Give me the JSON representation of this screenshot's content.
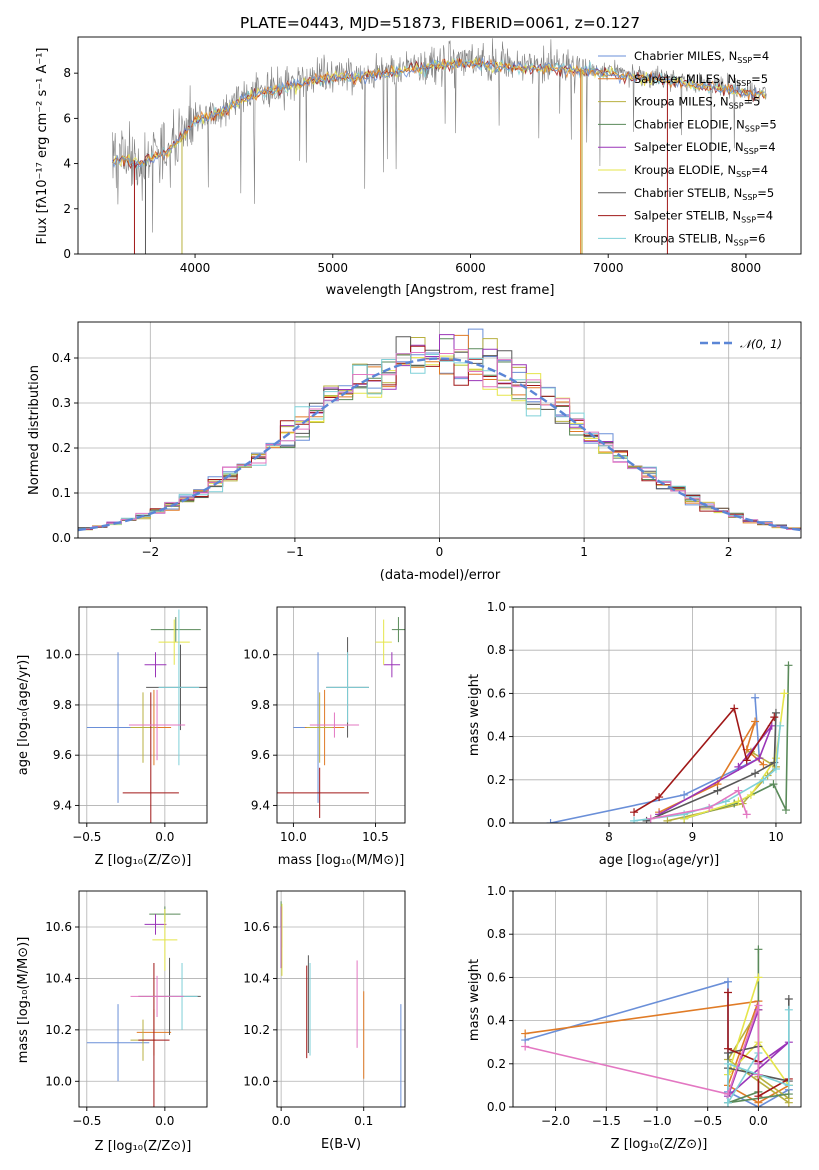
{
  "figure_title": "PLATE=0443, MJD=51873, FIBERID=0061, z=0.127",
  "labels": {
    "spec_x": "wavelength [Angstrom, rest frame]",
    "spec_y": "Flux [fλ10⁻¹⁷ erg cm⁻² s⁻¹ A⁻¹]",
    "resid_x": "(data-model)/error",
    "resid_y": "Normed distribution",
    "age_y": "age  [log₁₀(age/yr)]",
    "z_x": "Z [log₁₀(Z/Z⊙)]",
    "mass_x": "mass [log₁₀(M/M⊙)]",
    "mass_y": "mass [log₁₀(M/M⊙)]",
    "ebv_x": "E(B-V)",
    "mw_y": "mass weight",
    "mwage_x": "age  [log₁₀(age/yr)]",
    "mwz_x": "Z [log₁₀(Z/Z⊙)]"
  },
  "legend_normal": "𝒩(0, 1)",
  "colors": {
    "Chabrier MILES": "#6a8fd8",
    "Salpeter MILES": "#e07b26",
    "Kroupa MILES": "#b8b040",
    "Chabrier ELODIE": "#5a8a5a",
    "Salpeter ELODIE": "#9a35b8",
    "Kroupa ELODIE": "#e5e54a",
    "Chabrier STELIB": "#585858",
    "Salpeter STELIB": "#a01818",
    "Kroupa STELIB": "#7fd0d8",
    "pink": "#e377c2"
  },
  "chart_data": [
    {
      "id": "spectrum",
      "type": "line",
      "title": "PLATE=0443, MJD=51873, FIBERID=0061, z=0.127",
      "xlabel": "wavelength [Angstrom, rest frame]",
      "ylabel": "Flux [fλ10⁻¹⁷ erg cm⁻² s⁻¹ A⁻¹]",
      "xlim": [
        3150,
        8400
      ],
      "ylim": [
        0,
        9.6
      ],
      "xticks": [
        4000,
        5000,
        6000,
        7000,
        8000
      ],
      "yticks": [
        0,
        2,
        4,
        6,
        8
      ],
      "legend": [
        {
          "name": "Chabrier MILES",
          "nssp": "4"
        },
        {
          "name": "Salpeter MILES",
          "nssp": "5"
        },
        {
          "name": "Kroupa MILES",
          "nssp": "5"
        },
        {
          "name": "Chabrier ELODIE",
          "nssp": "5"
        },
        {
          "name": "Salpeter ELODIE",
          "nssp": "4"
        },
        {
          "name": "Kroupa ELODIE",
          "nssp": "4"
        },
        {
          "name": "Chabrier STELIB",
          "nssp": "5"
        },
        {
          "name": "Salpeter STELIB",
          "nssp": "4"
        },
        {
          "name": "Kroupa STELIB",
          "nssp": "6"
        }
      ],
      "data_envelope": {
        "x": [
          3400,
          3600,
          3800,
          4000,
          4200,
          4400,
          4600,
          4800,
          5000,
          5200,
          5400,
          5600,
          5800,
          6000,
          6200,
          6400,
          6600,
          6800,
          7000,
          7200,
          7400,
          7600,
          7800,
          8000,
          8150
        ],
        "y": [
          4.3,
          4.1,
          4.6,
          6.0,
          6.4,
          7.1,
          7.4,
          7.7,
          7.9,
          7.9,
          8.1,
          8.3,
          8.5,
          8.5,
          8.4,
          8.3,
          8.3,
          8.2,
          8.1,
          7.9,
          7.8,
          7.6,
          7.4,
          7.2,
          7.1
        ]
      }
    },
    {
      "id": "residuals",
      "type": "line",
      "xlabel": "(data-model)/error",
      "ylabel": "Normed distribution",
      "xlim": [
        -2.5,
        2.5
      ],
      "ylim": [
        0,
        0.48
      ],
      "xticks": [
        -2,
        -1,
        0,
        1,
        2
      ],
      "yticks": [
        0.0,
        0.1,
        0.2,
        0.3,
        0.4
      ],
      "series": [
        {
          "name": "𝒩(0, 1)",
          "mu": 0,
          "sigma": 1
        }
      ]
    },
    {
      "id": "age_vs_Z",
      "type": "scatter",
      "xlim": [
        -0.55,
        0.27
      ],
      "ylim": [
        9.33,
        10.19
      ],
      "xticks": [
        -0.5,
        0.0,
        0.5
      ],
      "yticks": [
        9.4,
        9.6,
        9.8,
        10.0
      ],
      "points": [
        {
          "c": "Chabrier MILES",
          "x": -0.3,
          "xe": 0.2,
          "y": 9.71,
          "ye": 0.3
        },
        {
          "c": "Salpeter MILES",
          "x": -0.07,
          "xe": 0.11,
          "y": 9.71,
          "ye": 0.15
        },
        {
          "c": "Kroupa MILES",
          "x": -0.14,
          "xe": 0.08,
          "y": 9.71,
          "ye": 0.14
        },
        {
          "c": "Chabrier ELODIE",
          "x": 0.07,
          "xe": 0.16,
          "y": 10.1,
          "ye": 0.05
        },
        {
          "c": "Salpeter ELODIE",
          "x": -0.06,
          "xe": 0.07,
          "y": 9.96,
          "ye": 0.05
        },
        {
          "c": "Kroupa ELODIE",
          "x": 0.06,
          "xe": 0.1,
          "y": 10.05,
          "ye": 0.09
        },
        {
          "c": "Chabrier STELIB",
          "x": 0.1,
          "xe": 0.22,
          "y": 9.87,
          "ye": 0.17
        },
        {
          "c": "Salpeter STELIB",
          "x": -0.09,
          "xe": 0.18,
          "y": 9.45,
          "ye": 0.4
        },
        {
          "c": "Kroupa STELIB",
          "x": 0.09,
          "xe": 0.13,
          "y": 9.87,
          "ye": 0.31
        },
        {
          "c": "pink",
          "x": -0.05,
          "xe": 0.18,
          "y": 9.72,
          "ye": 0.14
        }
      ]
    },
    {
      "id": "age_vs_mass",
      "type": "scatter",
      "xlim": [
        9.9,
        10.68
      ],
      "ylim": [
        9.33,
        10.19
      ],
      "xticks": [
        10.0,
        10.5
      ],
      "yticks": [
        9.4,
        9.6,
        9.8,
        10.0
      ],
      "points": [
        {
          "c": "Chabrier MILES",
          "x": 10.15,
          "xe": 0.15,
          "y": 9.71,
          "ye": 0.3
        },
        {
          "c": "Salpeter MILES",
          "x": 10.19,
          "xe": 0.12,
          "y": 9.71,
          "ye": 0.15
        },
        {
          "c": "Kroupa MILES",
          "x": 10.16,
          "xe": 0.08,
          "y": 9.71,
          "ye": 0.14
        },
        {
          "c": "Chabrier ELODIE",
          "x": 10.64,
          "xe": 0.04,
          "y": 10.1,
          "ye": 0.05
        },
        {
          "c": "Salpeter ELODIE",
          "x": 10.6,
          "xe": 0.05,
          "y": 9.96,
          "ye": 0.05
        },
        {
          "c": "Kroupa ELODIE",
          "x": 10.55,
          "xe": 0.05,
          "y": 10.05,
          "ye": 0.09
        },
        {
          "c": "Chabrier STELIB",
          "x": 10.33,
          "xe": 0.13,
          "y": 9.87,
          "ye": 0.2
        },
        {
          "c": "Salpeter STELIB",
          "x": 10.16,
          "xe": 0.3,
          "y": 9.45,
          "ye": 0.1
        },
        {
          "c": "Kroupa STELIB",
          "x": 10.33,
          "xe": 0.13,
          "y": 9.87,
          "ye": 0.14
        },
        {
          "c": "pink",
          "x": 10.25,
          "xe": 0.15,
          "y": 9.72,
          "ye": 0.05
        }
      ]
    },
    {
      "id": "mass_vs_Z",
      "type": "scatter",
      "xlim": [
        -0.55,
        0.27
      ],
      "ylim": [
        9.9,
        10.74
      ],
      "xticks": [
        -0.5,
        0.0,
        0.5
      ],
      "yticks": [
        10.0,
        10.2,
        10.4,
        10.6
      ],
      "points": [
        {
          "c": "Chabrier MILES",
          "x": -0.3,
          "xe": 0.2,
          "y": 10.15,
          "ye": 0.15
        },
        {
          "c": "Salpeter MILES",
          "x": -0.07,
          "xe": 0.11,
          "y": 10.19,
          "ye": 0.09
        },
        {
          "c": "Kroupa MILES",
          "x": -0.14,
          "xe": 0.08,
          "y": 10.16,
          "ye": 0.08
        },
        {
          "c": "Chabrier ELODIE",
          "x": 0.0,
          "xe": 0.1,
          "y": 10.65,
          "ye": 0.03
        },
        {
          "c": "Salpeter ELODIE",
          "x": -0.06,
          "xe": 0.07,
          "y": 10.61,
          "ye": 0.04
        },
        {
          "c": "Kroupa ELODIE",
          "x": 0.0,
          "xe": 0.08,
          "y": 10.55,
          "ye": 0.12
        },
        {
          "c": "Chabrier STELIB",
          "x": 0.03,
          "xe": 0.2,
          "y": 10.33,
          "ye": 0.15
        },
        {
          "c": "Salpeter STELIB",
          "x": -0.07,
          "xe": 0.1,
          "y": 10.16,
          "ye": 0.3
        },
        {
          "c": "Kroupa STELIB",
          "x": 0.11,
          "xe": 0.1,
          "y": 10.33,
          "ye": 0.13
        },
        {
          "c": "pink",
          "x": -0.05,
          "xe": 0.17,
          "y": 10.33,
          "ye": 0.08
        }
      ]
    },
    {
      "id": "mass_vs_ebv",
      "type": "scatter",
      "xlim": [
        -0.005,
        0.15
      ],
      "ylim": [
        9.9,
        10.74
      ],
      "xticks": [
        0.0,
        0.1
      ],
      "yticks": [
        10.0,
        10.2,
        10.4,
        10.6
      ],
      "points": [
        {
          "c": "Chabrier MILES",
          "x": 0.145,
          "y": 10.1,
          "ye": 0.2
        },
        {
          "c": "Salpeter MILES",
          "x": 0.1,
          "y": 10.18,
          "ye": 0.17
        },
        {
          "c": "Kroupa MILES",
          "x": 0.001,
          "y": 10.6,
          "ye": 0.08
        },
        {
          "c": "Chabrier ELODIE",
          "x": 0.0,
          "y": 10.65,
          "ye": 0.05
        },
        {
          "c": "Salpeter ELODIE",
          "x": 0.0,
          "y": 10.56,
          "ye": 0.12
        },
        {
          "c": "Kroupa ELODIE",
          "x": 0.001,
          "y": 10.55,
          "ye": 0.14
        },
        {
          "c": "Chabrier STELIB",
          "x": 0.033,
          "y": 10.3,
          "ye": 0.19
        },
        {
          "c": "Salpeter STELIB",
          "x": 0.031,
          "y": 10.27,
          "ye": 0.18
        },
        {
          "c": "Kroupa STELIB",
          "x": 0.035,
          "y": 10.28,
          "ye": 0.18
        },
        {
          "c": "pink",
          "x": 0.092,
          "y": 10.3,
          "ye": 0.17
        }
      ]
    },
    {
      "id": "massweight_vs_age",
      "type": "line",
      "xlim": [
        6.85,
        10.3
      ],
      "ylim": [
        0,
        1.0
      ],
      "xticks": [
        8,
        9,
        10
      ],
      "yticks": [
        0.0,
        0.2,
        0.4,
        0.6,
        0.8,
        1.0
      ],
      "series": [
        {
          "c": "Chabrier MILES",
          "x": [
            7.3,
            8.9,
            9.8,
            9.75
          ],
          "y": [
            0.0,
            0.13,
            0.3,
            0.58
          ]
        },
        {
          "c": "Salpeter MILES",
          "x": [
            8.6,
            9.3,
            9.75,
            9.65,
            9.85
          ],
          "y": [
            0.05,
            0.18,
            0.47,
            0.34,
            0.27
          ]
        },
        {
          "c": "Kroupa MILES",
          "x": [
            8.7,
            9.6,
            9.9,
            10.0,
            9.7
          ],
          "y": [
            0.01,
            0.09,
            0.22,
            0.26,
            0.33
          ]
        },
        {
          "c": "Chabrier ELODIE",
          "x": [
            8.9,
            9.5,
            9.97,
            10.12,
            10.15
          ],
          "y": [
            0.02,
            0.09,
            0.18,
            0.06,
            0.73
          ]
        },
        {
          "c": "Salpeter ELODIE",
          "x": [
            8.6,
            9.8,
            9.95,
            9.55
          ],
          "y": [
            0.04,
            0.3,
            0.45,
            0.26
          ]
        },
        {
          "c": "Kroupa ELODIE",
          "x": [
            8.9,
            9.55,
            9.7,
            10.0,
            10.1
          ],
          "y": [
            0.02,
            0.1,
            0.13,
            0.3,
            0.6
          ]
        },
        {
          "c": "Chabrier STELIB",
          "x": [
            8.45,
            9.3,
            9.75,
            9.98,
            10.0
          ],
          "y": [
            0.01,
            0.15,
            0.23,
            0.28,
            0.51
          ]
        },
        {
          "c": "Salpeter STELIB",
          "x": [
            8.3,
            8.6,
            9.5,
            9.65,
            9.98
          ],
          "y": [
            0.05,
            0.12,
            0.53,
            0.29,
            0.49
          ]
        },
        {
          "c": "Kroupa STELIB",
          "x": [
            8.3,
            8.9,
            9.4,
            9.85,
            10.0,
            10.05
          ],
          "y": [
            0.01,
            0.04,
            0.1,
            0.2,
            0.25,
            0.45
          ]
        },
        {
          "c": "pink",
          "x": [
            8.5,
            9.2,
            9.55,
            9.65
          ],
          "y": [
            0.02,
            0.07,
            0.15,
            0.04
          ]
        }
      ]
    },
    {
      "id": "massweight_vs_Z",
      "type": "line",
      "xlim": [
        -2.42,
        0.42
      ],
      "ylim": [
        0,
        1.0
      ],
      "xticks": [
        -2.0,
        -1.5,
        -1.0,
        -0.5,
        0.0
      ],
      "yticks": [
        0.0,
        0.2,
        0.4,
        0.6,
        0.8,
        1.0
      ],
      "series": [
        {
          "c": "Chabrier MILES",
          "x": [
            -2.3,
            -0.3,
            -0.3,
            0.0,
            0.3
          ],
          "y": [
            0.31,
            0.58,
            0.07,
            0.0,
            0.08
          ]
        },
        {
          "c": "Salpeter MILES",
          "x": [
            -2.3,
            0.0,
            -0.3,
            0.0,
            0.3
          ],
          "y": [
            0.34,
            0.49,
            0.1,
            0.02,
            0.1
          ]
        },
        {
          "c": "Kroupa MILES",
          "x": [
            0.3,
            -0.3,
            0.0,
            0.0,
            0.3
          ],
          "y": [
            0.02,
            0.22,
            0.45,
            0.14,
            0.04
          ]
        },
        {
          "c": "Chabrier ELODIE",
          "x": [
            0.0,
            0.0,
            -0.3,
            0.3
          ],
          "y": [
            0.73,
            0.07,
            0.02,
            0.06
          ]
        },
        {
          "c": "Salpeter ELODIE",
          "x": [
            0.0,
            -0.3,
            0.3,
            0.0
          ],
          "y": [
            0.45,
            0.05,
            0.3,
            0.2
          ]
        },
        {
          "c": "Kroupa ELODIE",
          "x": [
            0.0,
            -0.3,
            0.0,
            0.3
          ],
          "y": [
            0.6,
            0.15,
            0.3,
            0.1
          ]
        },
        {
          "c": "Chabrier STELIB",
          "x": [
            0.3,
            0.3,
            -0.3,
            -0.3,
            0.0
          ],
          "y": [
            0.5,
            0.12,
            0.18,
            0.25,
            0.28
          ]
        },
        {
          "c": "Salpeter STELIB",
          "x": [
            -0.3,
            -0.3,
            0.0,
            0.0,
            0.3
          ],
          "y": [
            0.53,
            0.27,
            0.21,
            0.05,
            0.13
          ]
        },
        {
          "c": "Kroupa STELIB",
          "x": [
            0.3,
            0.3,
            -0.3,
            -0.3,
            0.0
          ],
          "y": [
            0.45,
            0.1,
            0.2,
            0.02,
            0.25
          ]
        },
        {
          "c": "pink",
          "x": [
            -2.3,
            -0.3,
            0.0,
            0.0
          ],
          "y": [
            0.28,
            0.06,
            0.47,
            0.15
          ]
        }
      ]
    }
  ]
}
